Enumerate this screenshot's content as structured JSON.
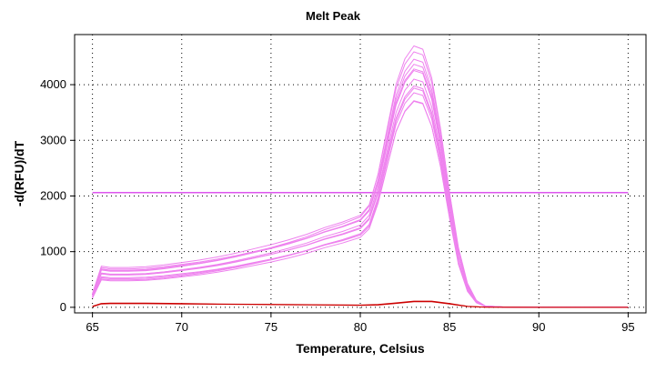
{
  "chart_data": {
    "type": "line",
    "title": "Melt Peak",
    "xlabel": "Temperature, Celsius",
    "ylabel": "-d(RFU)/dT",
    "xlim": [
      64,
      96
    ],
    "ylim": [
      -100,
      4900
    ],
    "xticks": [
      65,
      70,
      75,
      80,
      85,
      90,
      95
    ],
    "yticks": [
      0,
      1000,
      2000,
      3000,
      4000
    ],
    "grid": true,
    "grid_style": "dotted",
    "threshold": {
      "value": 2060,
      "color": "#dd55ee"
    },
    "sample_curve": {
      "color": "#ee82ee",
      "x": [
        65,
        65.5,
        66,
        67,
        68,
        69,
        70,
        71,
        72,
        73,
        74,
        75,
        76,
        77,
        78,
        79,
        80,
        80.5,
        81,
        81.5,
        82,
        82.5,
        83,
        83.5,
        84,
        84.5,
        85,
        85.5,
        86,
        86.5,
        87,
        88,
        90,
        92,
        94,
        95
      ],
      "y": [
        200,
        600,
        580,
        580,
        590,
        620,
        660,
        700,
        750,
        810,
        880,
        950,
        1030,
        1120,
        1230,
        1320,
        1430,
        1600,
        2100,
        2800,
        3500,
        3900,
        4100,
        4050,
        3600,
        2800,
        1800,
        900,
        350,
        100,
        20,
        5,
        0,
        0,
        0,
        0
      ],
      "replicates": [
        {
          "offset": 0,
          "scale": 1.0
        },
        {
          "offset": 60,
          "scale": 1.05
        },
        {
          "offset": -40,
          "scale": 0.95
        },
        {
          "offset": 30,
          "scale": 1.08
        },
        {
          "offset": -60,
          "scale": 0.92
        },
        {
          "offset": 100,
          "scale": 1.02
        },
        {
          "offset": -20,
          "scale": 1.15
        },
        {
          "offset": 10,
          "scale": 0.9
        },
        {
          "offset": 80,
          "scale": 1.1
        },
        {
          "offset": -80,
          "scale": 0.98
        },
        {
          "offset": 40,
          "scale": 0.96
        },
        {
          "offset": -10,
          "scale": 1.04
        }
      ]
    },
    "control_curves": [
      {
        "color": "#cc0000",
        "x": [
          65,
          65.5,
          66,
          68,
          70,
          72,
          74,
          76,
          78,
          80,
          81,
          82,
          83,
          84,
          85,
          86,
          87,
          90,
          95
        ],
        "y": [
          20,
          70,
          75,
          75,
          70,
          60,
          55,
          50,
          45,
          40,
          50,
          80,
          110,
          110,
          70,
          20,
          5,
          0,
          0
        ]
      },
      {
        "color": "#cc0000",
        "x": [
          65,
          65.5,
          66,
          68,
          70,
          72,
          74,
          76,
          78,
          80,
          81,
          82,
          83,
          84,
          85,
          86,
          87,
          90,
          95
        ],
        "y": [
          10,
          60,
          65,
          65,
          60,
          55,
          50,
          45,
          40,
          35,
          40,
          70,
          100,
          100,
          60,
          15,
          3,
          0,
          0
        ]
      }
    ]
  }
}
